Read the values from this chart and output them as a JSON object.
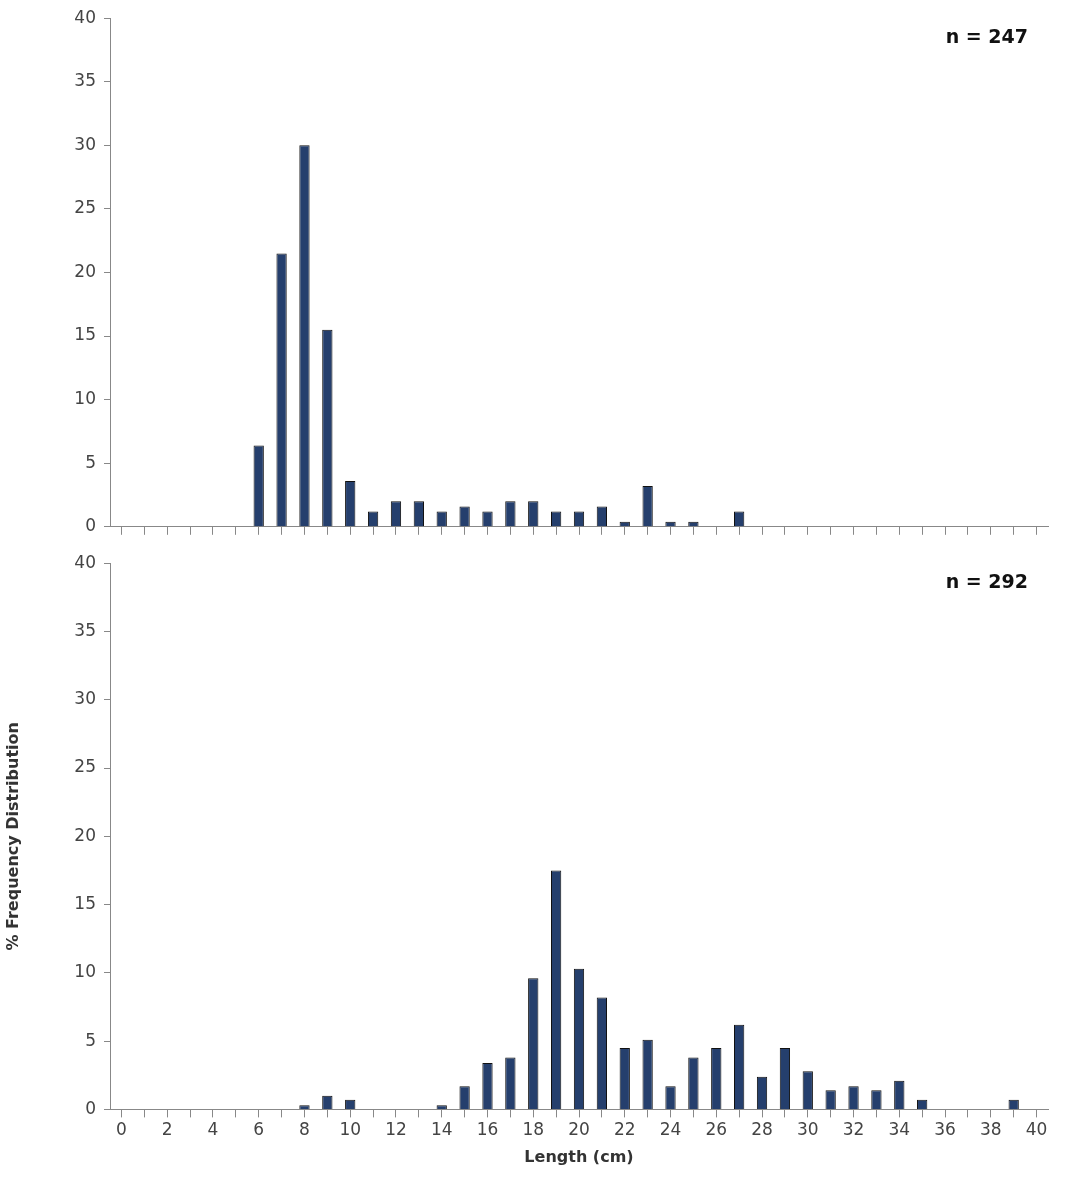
{
  "chart_data": [
    {
      "type": "bar",
      "x": [
        0,
        1,
        2,
        3,
        4,
        5,
        6,
        7,
        8,
        9,
        10,
        11,
        12,
        13,
        14,
        15,
        16,
        17,
        18,
        19,
        20,
        21,
        22,
        23,
        24,
        25,
        26,
        27,
        28,
        29,
        30,
        31,
        32,
        33,
        34,
        35,
        36,
        37,
        38,
        39,
        40
      ],
      "values": [
        0,
        0,
        0,
        0,
        0,
        0,
        6.4,
        21.5,
        30,
        15.5,
        3.6,
        1.2,
        2,
        2,
        1.2,
        1.6,
        1.2,
        2,
        2,
        1.2,
        1.2,
        1.6,
        0.4,
        3.2,
        0.4,
        0.4,
        0,
        1.2,
        0,
        0,
        0,
        0,
        0,
        0,
        0,
        0,
        0,
        0,
        0,
        0,
        0
      ],
      "color": "#253f6d",
      "xlim": [
        -0.5,
        40.5
      ],
      "xticks": [
        0,
        {
          "value": 1,
          "label": null
        },
        2,
        {
          "value": 3,
          "label": null
        },
        4,
        {
          "value": 5,
          "label": null
        },
        6,
        {
          "value": 7,
          "label": null
        },
        8,
        {
          "value": 9,
          "label": null
        },
        10,
        {
          "value": 11,
          "label": null
        },
        12,
        {
          "value": 13,
          "label": null
        },
        14,
        {
          "value": 15,
          "label": null
        },
        16,
        {
          "value": 17,
          "label": null
        },
        18,
        {
          "value": 19,
          "label": null
        },
        20,
        {
          "value": 21,
          "label": null
        },
        22,
        {
          "value": 23,
          "label": null
        },
        24,
        {
          "value": 25,
          "label": null
        },
        26,
        {
          "value": 27,
          "label": null
        },
        28,
        {
          "value": 29,
          "label": null
        },
        30,
        {
          "value": 31,
          "label": null
        },
        32,
        {
          "value": 33,
          "label": null
        },
        34,
        {
          "value": 35,
          "label": null
        },
        36,
        {
          "value": 37,
          "label": null
        },
        38,
        {
          "value": 39,
          "label": null
        },
        40
      ],
      "ylim": [
        0,
        40
      ],
      "yticks": [
        0,
        5,
        10,
        15,
        20,
        25,
        30,
        35,
        40
      ],
      "tick_labels": "y",
      "annotations": [
        "n = 247"
      ]
    },
    {
      "type": "bar",
      "x": [
        0,
        1,
        2,
        3,
        4,
        5,
        6,
        7,
        8,
        9,
        10,
        11,
        12,
        13,
        14,
        15,
        16,
        17,
        18,
        19,
        20,
        21,
        22,
        23,
        24,
        25,
        26,
        27,
        28,
        29,
        30,
        31,
        32,
        33,
        34,
        35,
        36,
        37,
        38,
        39,
        40
      ],
      "values": [
        0,
        0,
        0,
        0,
        0,
        0,
        0,
        0,
        0.3,
        1,
        0.7,
        0,
        0,
        0,
        0.3,
        1.7,
        3.4,
        3.8,
        9.6,
        17.5,
        10.3,
        8.2,
        4.5,
        5.1,
        1.7,
        3.8,
        4.5,
        6.2,
        2.4,
        4.5,
        2.8,
        1.4,
        1.7,
        1.4,
        2.1,
        0.7,
        0,
        0,
        0,
        0.7,
        0
      ],
      "color": "#253f6d",
      "xlim": [
        -0.5,
        40.5
      ],
      "xticks": [
        0,
        {
          "value": 1,
          "label": null
        },
        2,
        {
          "value": 3,
          "label": null
        },
        4,
        {
          "value": 5,
          "label": null
        },
        6,
        {
          "value": 7,
          "label": null
        },
        8,
        {
          "value": 9,
          "label": null
        },
        10,
        {
          "value": 11,
          "label": null
        },
        12,
        {
          "value": 13,
          "label": null
        },
        14,
        {
          "value": 15,
          "label": null
        },
        16,
        {
          "value": 17,
          "label": null
        },
        18,
        {
          "value": 19,
          "label": null
        },
        20,
        {
          "value": 21,
          "label": null
        },
        22,
        {
          "value": 23,
          "label": null
        },
        24,
        {
          "value": 25,
          "label": null
        },
        26,
        {
          "value": 27,
          "label": null
        },
        28,
        {
          "value": 29,
          "label": null
        },
        30,
        {
          "value": 31,
          "label": null
        },
        32,
        {
          "value": 33,
          "label": null
        },
        34,
        {
          "value": 35,
          "label": null
        },
        36,
        {
          "value": 37,
          "label": null
        },
        38,
        {
          "value": 39,
          "label": null
        },
        40
      ],
      "ylim": [
        0,
        40
      ],
      "yticks": [
        0,
        5,
        10,
        15,
        20,
        25,
        30,
        35,
        40
      ],
      "xlabel": "Length (cm)",
      "ylabel": "% Frequency Distribution",
      "annotations": [
        "n = 292"
      ]
    }
  ]
}
